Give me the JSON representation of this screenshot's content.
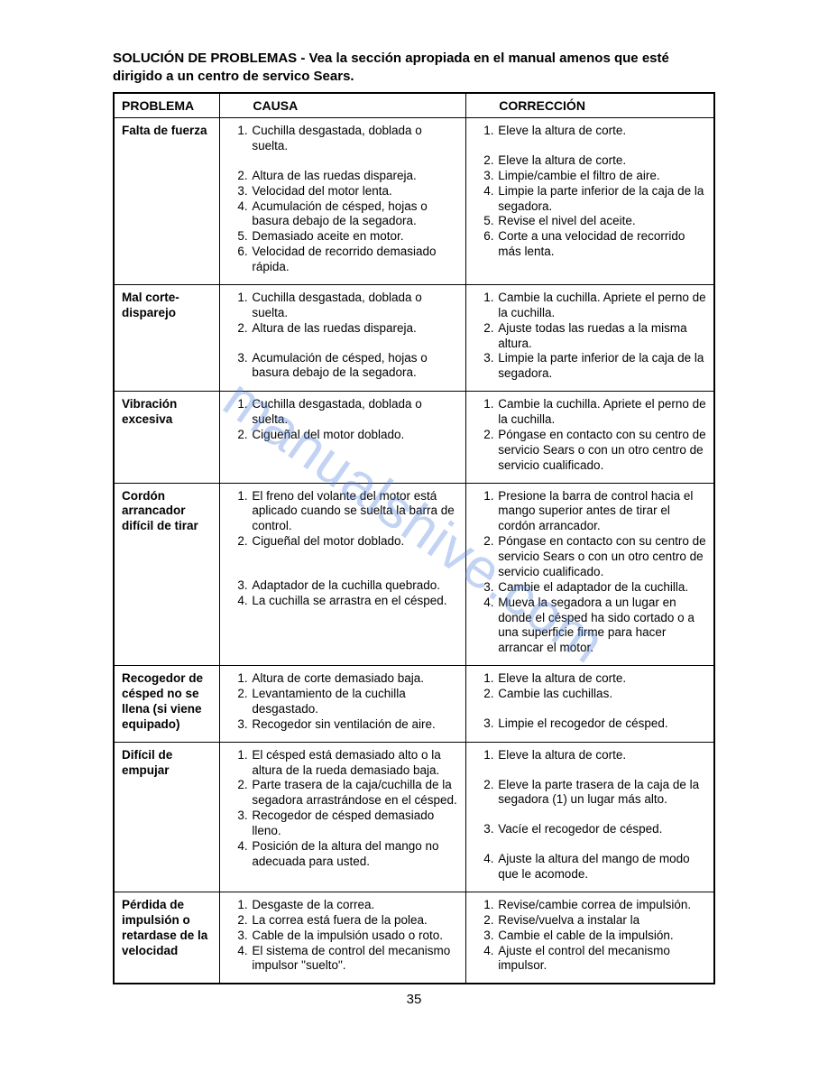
{
  "title": "SOLUCIÓN DE PROBLEMAS - Vea la sección apropiada en el manual amenos que esté dirigido a un centro de servico Sears.",
  "headers": {
    "problem": "PROBLEMA",
    "cause": "CAUSA",
    "correction": "CORRECCIÓN"
  },
  "rows": [
    {
      "problem": "Falta de fuerza",
      "causes": [
        "Cuchilla desgastada, doblada o suelta.",
        "Altura de las ruedas dispareja.",
        "Velocidad del motor lenta.",
        "Acumulación de césped, hojas o basura debajo de la segadora.",
        "Demasiado aceite en motor.",
        "Velocidad de recorrido demasiado rápida."
      ],
      "corrections": [
        "Eleve la altura de corte.",
        "Eleve la altura de corte.",
        "Limpie/cambie el filtro de aire.",
        "Limpie la parte inferior de la caja de la segadora.",
        "Revise el nivel del aceite.",
        "Corte a una velocidad de recorrido más lenta."
      ]
    },
    {
      "problem": "Mal corte-disparejo",
      "causes": [
        "Cuchilla desgastada, doblada o suelta.",
        "Altura de las ruedas dispareja.",
        "Acumulación de césped, hojas o basura debajo de la segadora."
      ],
      "corrections": [
        "Cambie la cuchilla. Apriete el perno de la cuchilla.",
        "Ajuste todas las ruedas a la misma altura.",
        "Limpie la parte inferior de la caja de la segadora."
      ]
    },
    {
      "problem": "Vibración excesiva",
      "causes": [
        "Cuchilla desgastada, doblada o suelta.",
        "Cigueñal del motor doblado."
      ],
      "corrections": [
        "Cambie la cuchilla. Apriete el perno de la cuchilla.",
        "Póngase en contacto con su centro de servicio Sears o con un otro centro de servicio cualificado."
      ]
    },
    {
      "problem": "Cordón arrancador difícil de tirar",
      "causes": [
        "El freno del volante del motor está aplicado cuando se suelta la barra de control.",
        "Cigueñal del motor doblado.",
        "Adaptador de la cuchilla quebrado.",
        "La cuchilla se arrastra en el césped."
      ],
      "corrections": [
        "Presione la barra de control hacia el mango superior antes de tirar el cordón arrancador.",
        "Póngase en contacto con su centro de servicio Sears o con un otro centro de servicio cualificado.",
        "Cambie el adaptador de la cuchilla.",
        "Mueva la segadora a un lugar en donde el césped ha sido cortado o a una superficie firme para hacer arrancar el motor."
      ]
    },
    {
      "problem": "Recogedor de césped no se llena (si viene equipado)",
      "causes": [
        "Altura de corte demasiado baja.",
        "Levantamiento de la cuchilla desgastado.",
        "Recogedor sin ventilación de aire."
      ],
      "corrections": [
        "Eleve la altura de corte.",
        "Cambie las cuchillas.",
        "Limpie el recogedor de césped."
      ]
    },
    {
      "problem": "Difícil de empujar",
      "causes": [
        "El césped está demasiado alto o la altura de la rueda demasiado baja.",
        "Parte trasera de la caja/cuchilla de la segadora arrastrándose en el césped.",
        "Recogedor de césped demasiado lleno.",
        "Posición de la altura del mango no adecuada para usted."
      ],
      "corrections": [
        "Eleve la altura de corte.",
        "Eleve la parte trasera de la caja de la segadora (1) un lugar más alto.",
        "Vacíe el recogedor de césped.",
        "Ajuste la altura del mango de modo que le acomode."
      ]
    },
    {
      "problem": "Pérdida de impulsión o retardase de la velocidad",
      "causes": [
        "Desgaste de la correa.",
        "La correa está fuera de la polea.",
        "Cable de la impulsión usado o roto.",
        "El sistema de control del mecanismo impulsor \"suelto\"."
      ],
      "corrections": [
        "Revise/cambie correa de impulsión.",
        "Revise/vuelva a instalar la",
        "Cambie  el cable de la impulsión.",
        "Ajuste el control del mecanismo impulsor."
      ]
    }
  ],
  "page_number": "35",
  "watermark": "manualshive.com"
}
